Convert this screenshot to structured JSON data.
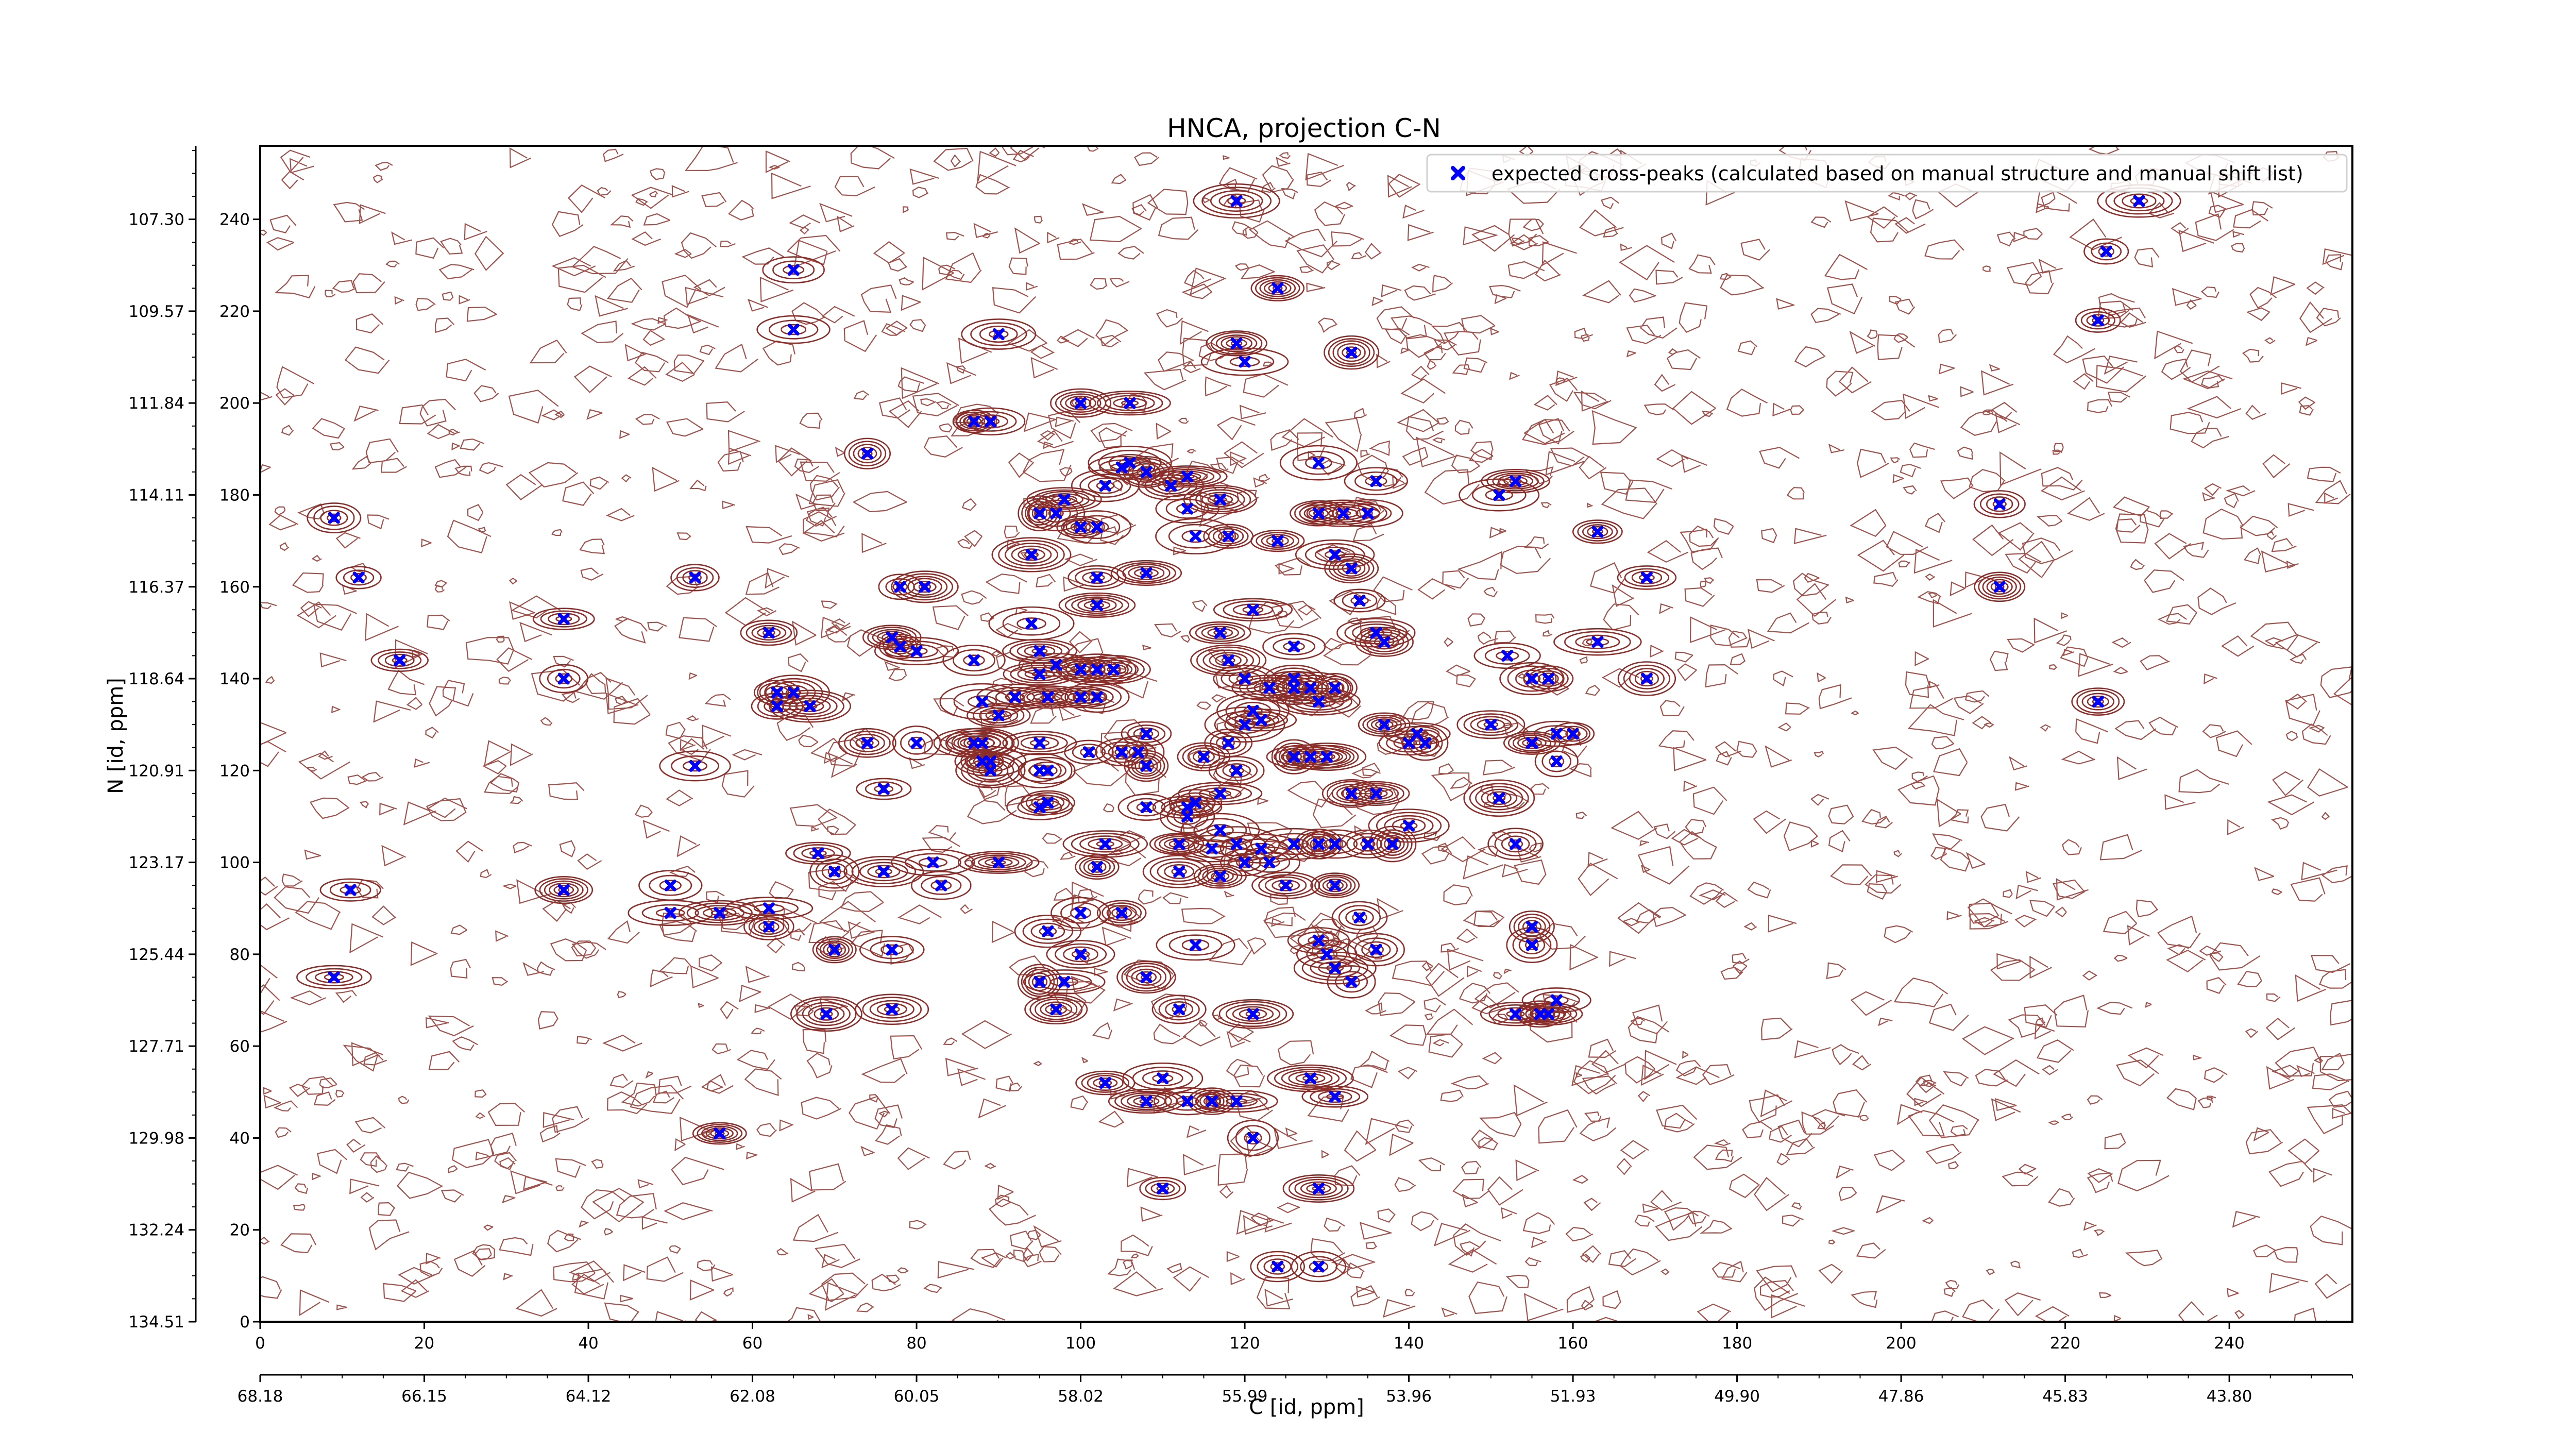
{
  "chart_data": {
    "type": "scatter",
    "title": "HNCA, projection C-N",
    "xlabel": "C [id, ppm]",
    "ylabel": "N [id, ppm]",
    "x_index_ticks": [
      "0",
      "20",
      "40",
      "60",
      "80",
      "100",
      "120",
      "140",
      "160",
      "180",
      "200",
      "220",
      "240"
    ],
    "x_ppm_ticks": [
      "68.18",
      "66.15",
      "64.12",
      "62.08",
      "60.05",
      "58.02",
      "55.99",
      "53.96",
      "51.93",
      "49.90",
      "47.86",
      "45.83",
      "43.80"
    ],
    "y_index_ticks": [
      "0",
      "20",
      "40",
      "60",
      "80",
      "100",
      "120",
      "140",
      "160",
      "180",
      "200",
      "220",
      "240"
    ],
    "y_ppm_ticks": [
      "134.51",
      "132.24",
      "129.98",
      "127.71",
      "125.44",
      "123.17",
      "120.91",
      "118.64",
      "116.37",
      "114.11",
      "111.84",
      "109.57",
      "107.30"
    ],
    "xlim": [
      0,
      255
    ],
    "ylim": [
      0,
      256
    ],
    "grid": false,
    "legend_position": "top-right",
    "series": [
      {
        "name": "expected cross-peaks (calculated based on manual structure and manual shift list)",
        "marker": "filled-x",
        "color": "#0000ff",
        "points": [
          [
            9,
            175
          ],
          [
            12,
            162
          ],
          [
            11,
            94
          ],
          [
            9,
            75
          ],
          [
            17,
            144
          ],
          [
            37,
            153
          ],
          [
            37,
            140
          ],
          [
            37,
            94
          ],
          [
            53,
            162
          ],
          [
            53,
            121
          ],
          [
            50,
            95
          ],
          [
            50,
            89
          ],
          [
            56,
            89
          ],
          [
            56,
            41
          ],
          [
            62,
            90
          ],
          [
            62,
            150
          ],
          [
            63,
            137
          ],
          [
            63,
            134
          ],
          [
            65,
            137
          ],
          [
            67,
            134
          ],
          [
            65,
            216
          ],
          [
            65,
            229
          ],
          [
            74,
            189
          ],
          [
            74,
            126
          ],
          [
            76,
            116
          ],
          [
            68,
            102
          ],
          [
            70,
            98
          ],
          [
            76,
            98
          ],
          [
            77,
            81
          ],
          [
            70,
            81
          ],
          [
            69,
            67
          ],
          [
            77,
            68
          ],
          [
            62,
            86
          ],
          [
            78,
            160
          ],
          [
            81,
            160
          ],
          [
            77,
            149
          ],
          [
            78,
            147
          ],
          [
            80,
            146
          ],
          [
            80,
            126
          ],
          [
            82,
            100
          ],
          [
            83,
            95
          ],
          [
            87,
            126
          ],
          [
            88,
            126
          ],
          [
            88,
            122
          ],
          [
            89,
            120
          ],
          [
            89,
            122
          ],
          [
            87,
            144
          ],
          [
            90,
            132
          ],
          [
            88,
            135
          ],
          [
            90,
            100
          ],
          [
            87,
            196
          ],
          [
            89,
            196
          ],
          [
            90,
            215
          ],
          [
            94,
            167
          ],
          [
            94,
            152
          ],
          [
            95,
            146
          ],
          [
            97,
            143
          ],
          [
            95,
            141
          ],
          [
            92,
            136
          ],
          [
            96,
            136
          ],
          [
            100,
            136
          ],
          [
            100,
            142
          ],
          [
            102,
            142
          ],
          [
            104,
            142
          ],
          [
            102,
            156
          ],
          [
            95,
            126
          ],
          [
            95,
            120
          ],
          [
            96,
            120
          ],
          [
            95,
            112
          ],
          [
            96,
            113
          ],
          [
            100,
            89
          ],
          [
            105,
            89
          ],
          [
            102,
            99
          ],
          [
            103,
            104
          ],
          [
            96,
            85
          ],
          [
            97,
            68
          ],
          [
            95,
            74
          ],
          [
            98,
            74
          ],
          [
            103,
            52
          ],
          [
            100,
            80
          ],
          [
            101,
            124
          ],
          [
            102,
            136
          ],
          [
            107,
            124
          ],
          [
            108,
            128
          ],
          [
            105,
            124
          ],
          [
            108,
            121
          ],
          [
            108,
            112
          ],
          [
            113,
            112
          ],
          [
            110,
            53
          ],
          [
            108,
            48
          ],
          [
            112,
            68
          ],
          [
            108,
            75
          ],
          [
            110,
            29
          ],
          [
            113,
            48
          ],
          [
            116,
            48
          ],
          [
            119,
            48
          ],
          [
            114,
            82
          ],
          [
            121,
            67
          ],
          [
            121,
            40
          ],
          [
            124,
            12
          ],
          [
            129,
            12
          ],
          [
            129,
            29
          ],
          [
            128,
            53
          ],
          [
            131,
            49
          ],
          [
            130,
            80
          ],
          [
            129,
            83
          ],
          [
            131,
            77
          ],
          [
            133,
            74
          ],
          [
            136,
            81
          ],
          [
            134,
            88
          ],
          [
            131,
            95
          ],
          [
            125,
            95
          ],
          [
            120,
            100
          ],
          [
            117,
            97
          ],
          [
            112,
            98
          ],
          [
            112,
            104
          ],
          [
            116,
            103
          ],
          [
            114,
            113
          ],
          [
            113,
            110
          ],
          [
            117,
            115
          ],
          [
            119,
            120
          ],
          [
            115,
            123
          ],
          [
            118,
            126
          ],
          [
            120,
            130
          ],
          [
            121,
            133
          ],
          [
            123,
            138
          ],
          [
            126,
            138
          ],
          [
            128,
            138
          ],
          [
            131,
            138
          ],
          [
            129,
            135
          ],
          [
            126,
            123
          ],
          [
            128,
            123
          ],
          [
            130,
            123
          ],
          [
            131,
            104
          ],
          [
            135,
            104
          ],
          [
            138,
            104
          ],
          [
            129,
            104
          ],
          [
            126,
            104
          ],
          [
            123,
            100
          ],
          [
            122,
            103
          ],
          [
            119,
            104
          ],
          [
            117,
            107
          ],
          [
            118,
            144
          ],
          [
            120,
            140
          ],
          [
            126,
            140
          ],
          [
            126,
            147
          ],
          [
            122,
            131
          ],
          [
            117,
            150
          ],
          [
            121,
            155
          ],
          [
            118,
            171
          ],
          [
            124,
            170
          ],
          [
            129,
            176
          ],
          [
            132,
            176
          ],
          [
            135,
            176
          ],
          [
            129,
            187
          ],
          [
            136,
            183
          ],
          [
            117,
            179
          ],
          [
            113,
            177
          ],
          [
            113,
            184
          ],
          [
            111,
            182
          ],
          [
            108,
            185
          ],
          [
            106,
            187
          ],
          [
            105,
            186
          ],
          [
            103,
            182
          ],
          [
            98,
            179
          ],
          [
            100,
            173
          ],
          [
            102,
            173
          ],
          [
            97,
            176
          ],
          [
            95,
            176
          ],
          [
            102,
            162
          ],
          [
            108,
            163
          ],
          [
            114,
            171
          ],
          [
            100,
            200
          ],
          [
            106,
            200
          ],
          [
            119,
            213
          ],
          [
            120,
            209
          ],
          [
            119,
            244
          ],
          [
            124,
            225
          ],
          [
            133,
            211
          ],
          [
            131,
            167
          ],
          [
            133,
            164
          ],
          [
            134,
            157
          ],
          [
            136,
            150
          ],
          [
            137,
            148
          ],
          [
            137,
            130
          ],
          [
            140,
            126
          ],
          [
            141,
            128
          ],
          [
            142,
            126
          ],
          [
            133,
            115
          ],
          [
            140,
            108
          ],
          [
            136,
            115
          ],
          [
            152,
            145
          ],
          [
            150,
            130
          ],
          [
            155,
            140
          ],
          [
            157,
            140
          ],
          [
            158,
            128
          ],
          [
            155,
            126
          ],
          [
            158,
            122
          ],
          [
            160,
            128
          ],
          [
            163,
            148
          ],
          [
            169,
            140
          ],
          [
            169,
            162
          ],
          [
            151,
            114
          ],
          [
            153,
            104
          ],
          [
            155,
            86
          ],
          [
            155,
            82
          ],
          [
            158,
            70
          ],
          [
            157,
            67
          ],
          [
            156,
            67
          ],
          [
            153,
            67
          ],
          [
            151,
            180
          ],
          [
            153,
            183
          ],
          [
            163,
            172
          ],
          [
            212,
            178
          ],
          [
            212,
            160
          ],
          [
            224,
            135
          ],
          [
            224,
            218
          ],
          [
            225,
            233
          ],
          [
            229,
            244
          ]
        ]
      }
    ]
  }
}
